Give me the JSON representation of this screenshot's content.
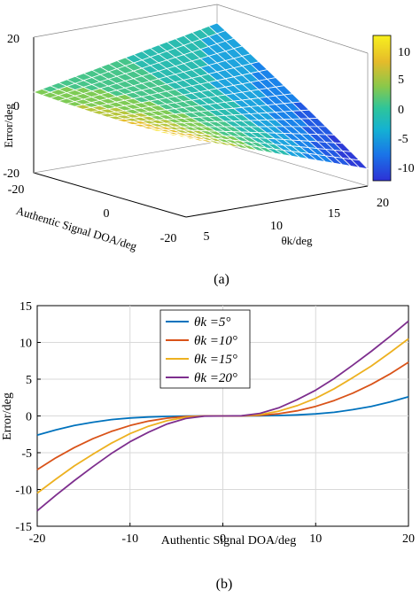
{
  "captions": {
    "a": "(a)",
    "b": "(b)"
  },
  "chart_data": [
    {
      "type": "surface",
      "panel": "(a)",
      "xlabel": "Authentic Signal DOA/deg",
      "ylabel": "θk/deg",
      "zlabel": "Error/deg",
      "x_ticks": [
        "-20",
        "0",
        "20"
      ],
      "y_ticks": [
        "5",
        "10",
        "15",
        "20"
      ],
      "z_ticks": [
        "20",
        "0",
        "-20"
      ],
      "xlim": [
        -20,
        20
      ],
      "ylim": [
        5,
        20
      ],
      "zlim": [
        -20,
        20
      ],
      "colorbar_ticks": [
        "10",
        "5",
        "0",
        "-5",
        "-10"
      ],
      "colorbar_range": [
        -12,
        13
      ],
      "colormap": "parula",
      "grid": true,
      "description_of_surface": "Error grows with theta_k; positive at DOA=+20, negative at DOA=-20"
    },
    {
      "type": "line",
      "panel": "(b)",
      "xlabel": "Authentic Signal DOA/deg",
      "ylabel": "Error/deg",
      "xlim": [
        -20,
        20
      ],
      "ylim": [
        -15,
        15
      ],
      "x_ticks": [
        "-20",
        "-10",
        "0",
        "10",
        "20"
      ],
      "y_ticks": [
        "15",
        "10",
        "5",
        "0",
        "-5",
        "-10",
        "-15"
      ],
      "grid": true,
      "legend_position": "top-center",
      "x": [
        -20,
        -18,
        -16,
        -14,
        -12,
        -10,
        -8,
        -6,
        -4,
        -2,
        0,
        2,
        4,
        6,
        8,
        10,
        12,
        14,
        16,
        18,
        20
      ],
      "series": [
        {
          "name": "θk =5°",
          "color": "#0072BD",
          "values": [
            -2.6,
            -1.9,
            -1.3,
            -0.85,
            -0.5,
            -0.28,
            -0.14,
            -0.06,
            -0.02,
            0,
            0,
            0,
            0.02,
            0.06,
            0.14,
            0.28,
            0.5,
            0.85,
            1.3,
            1.9,
            2.6
          ]
        },
        {
          "name": "θk =10°",
          "color": "#D95319",
          "values": [
            -7.3,
            -5.7,
            -4.3,
            -3.1,
            -2.1,
            -1.3,
            -0.7,
            -0.3,
            -0.08,
            0,
            0,
            0,
            0.08,
            0.3,
            0.7,
            1.3,
            2.1,
            3.1,
            4.3,
            5.7,
            7.3
          ]
        },
        {
          "name": "θk =15°",
          "color": "#EDB120",
          "values": [
            -10.5,
            -8.6,
            -6.8,
            -5.2,
            -3.7,
            -2.4,
            -1.4,
            -0.65,
            -0.18,
            -0.01,
            0,
            0.01,
            0.18,
            0.65,
            1.4,
            2.4,
            3.7,
            5.2,
            6.8,
            8.6,
            10.5
          ]
        },
        {
          "name": "θk =20°",
          "color": "#7E2F8E",
          "values": [
            -12.9,
            -10.8,
            -8.8,
            -6.9,
            -5.1,
            -3.5,
            -2.2,
            -1.1,
            -0.35,
            -0.03,
            0,
            0.03,
            0.35,
            1.1,
            2.2,
            3.5,
            5.1,
            6.9,
            8.8,
            10.8,
            12.9
          ]
        }
      ]
    }
  ]
}
